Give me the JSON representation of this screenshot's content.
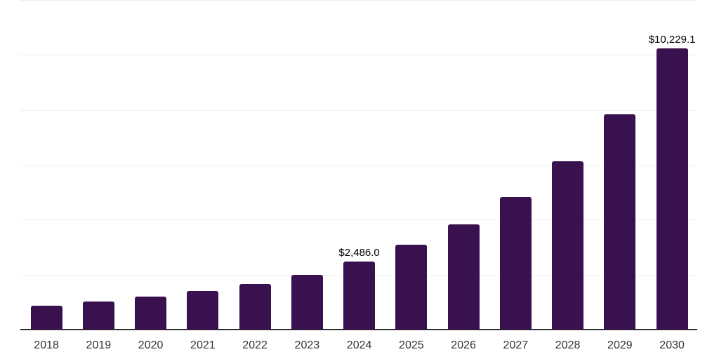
{
  "chart_data": {
    "type": "bar",
    "title": "",
    "xlabel": "",
    "ylabel": "",
    "categories": [
      "2018",
      "2019",
      "2020",
      "2021",
      "2022",
      "2023",
      "2024",
      "2025",
      "2026",
      "2027",
      "2028",
      "2029",
      "2030"
    ],
    "values": [
      870,
      1020,
      1200,
      1405,
      1660,
      2000,
      2486.0,
      3080,
      3830,
      4825,
      6130,
      7830,
      10229.1
    ],
    "data_labels": [
      "",
      "",
      "",
      "",
      "",
      "",
      "$2,486.0",
      "",
      "",
      "",
      "",
      "",
      "$10,229.1"
    ],
    "ylim": [
      0,
      12000
    ],
    "gridline_step": 2000,
    "grid": "horizontal-only",
    "y_axis_labels_visible": false,
    "legend": "none",
    "colors": {
      "bar": "#38114E",
      "gridline": "#EFEFEF",
      "axis_line": "#2E2E2E",
      "tick_label": "#333333",
      "data_label": "#000000",
      "background": "#FFFFFF"
    }
  }
}
